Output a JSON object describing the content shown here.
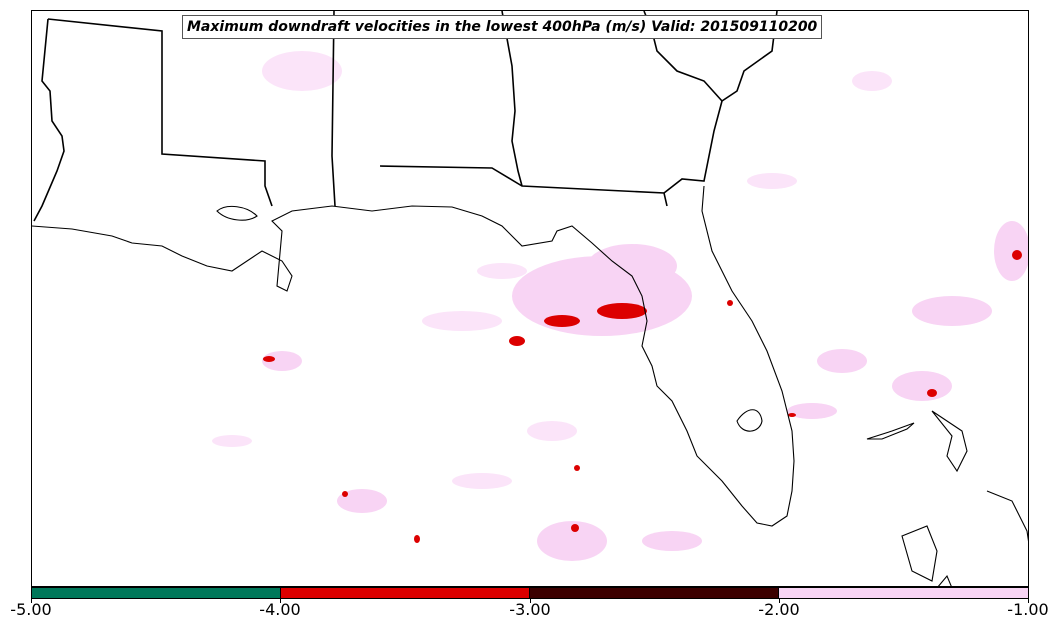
{
  "title": "Maximum downdraft velocities in the lowest 400hPa (m/s) Valid: 201509110200",
  "colorbar": {
    "colors": [
      "#00785a",
      "#dc0000",
      "#3c0000",
      "#f8d4f4"
    ],
    "tick_labels": [
      "-5.00",
      "-4.00",
      "-3.00",
      "-2.00",
      "-1.00"
    ]
  },
  "chart_data": {
    "type": "heatmap",
    "title": "Maximum downdraft velocities in the lowest 400hPa (m/s) Valid: 201509110200",
    "levels": [
      -5.0,
      -4.0,
      -3.0,
      -2.0,
      -1.0
    ],
    "level_colors": [
      "#00785a",
      "#dc0000",
      "#3c0000",
      "#f8d4f4"
    ]
  }
}
